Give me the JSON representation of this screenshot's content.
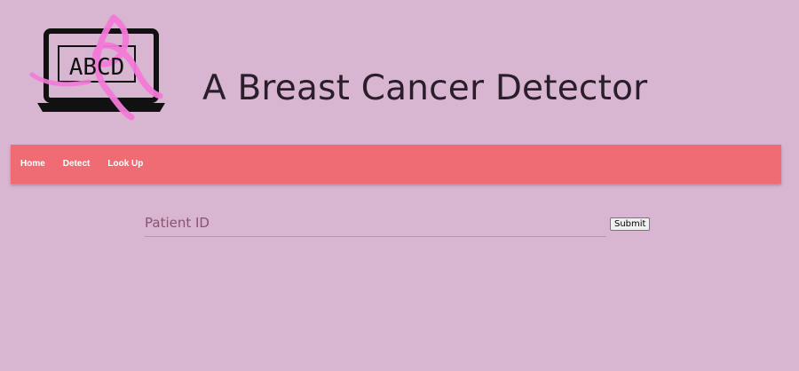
{
  "header": {
    "logo_text": "ABCD",
    "title": "A Breast Cancer Detector"
  },
  "nav": {
    "items": [
      {
        "label": "Home"
      },
      {
        "label": "Detect"
      },
      {
        "label": "Look Up"
      }
    ]
  },
  "form": {
    "input_placeholder": "Patient ID",
    "input_value": "",
    "submit_label": "Submit"
  },
  "colors": {
    "background": "#d8b5d0",
    "navbar": "#ef6c75",
    "ribbon": "#f27ad8",
    "title_text": "#2a1e2a"
  },
  "icons": {
    "logo": "laptop-with-pink-ribbon-icon"
  }
}
